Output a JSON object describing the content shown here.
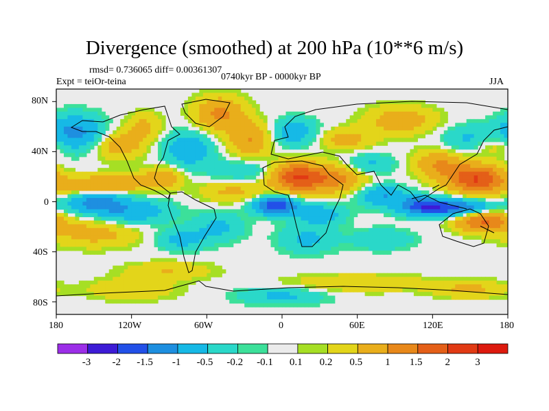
{
  "title": "Divergence (smoothed) at 200 hPa (10**6 m/s)",
  "stats": "rmsd= 0.736065 diff= 0.00361307",
  "experiment": "Expt = teiOr-teina",
  "period": "0740kyr BP - 0000kyr BP",
  "season": "JJA",
  "y_ticks": [
    "80N",
    "40N",
    "0",
    "40S",
    "80S"
  ],
  "x_ticks": [
    "180",
    "120W",
    "60W",
    "0",
    "60E",
    "120E",
    "180"
  ],
  "colorbar": {
    "labels": [
      "-3",
      "-2",
      "-1.5",
      "-1",
      "-0.5",
      "-0.2",
      "-0.1",
      "0.1",
      "0.2",
      "0.5",
      "1",
      "1.5",
      "2",
      "3"
    ],
    "colors": [
      "#9c2ee8",
      "#3d1bd6",
      "#2250e8",
      "#1e8fe0",
      "#16b9e6",
      "#2ad8c9",
      "#3ce09a",
      "#ebebeb",
      "#a6df24",
      "#e3d51a",
      "#e9ae1b",
      "#e8881a",
      "#e45f18",
      "#e13a14",
      "#dd1a0e"
    ]
  },
  "colors": {
    "neutral": "#ebebeb",
    "coast": "#000000"
  },
  "chart_data": {
    "type": "heatmap",
    "title": "Divergence (smoothed) at 200 hPa (10**6 m/s)",
    "variable": "Divergence (smoothed) at 200 hPa",
    "units": "10**6 m/s",
    "x_range": [
      -180,
      180
    ],
    "y_range": [
      -90,
      90
    ],
    "levels": [
      -3,
      -2,
      -1.5,
      -1,
      -0.5,
      -0.2,
      -0.1,
      0.1,
      0.2,
      0.5,
      1,
      1.5,
      2,
      3
    ],
    "features": [
      {
        "lon": -150,
        "lat": 0,
        "sigma_lon": 16,
        "sigma_lat": 6,
        "value": -1.2
      },
      {
        "lon": -120,
        "lat": -8,
        "sigma_lon": 22,
        "sigma_lat": 7,
        "value": -0.9
      },
      {
        "lon": -160,
        "lat": 12,
        "sigma_lon": 18,
        "sigma_lat": 6,
        "value": 0.6
      },
      {
        "lon": -125,
        "lat": 15,
        "sigma_lon": 22,
        "sigma_lat": 5,
        "value": 0.8
      },
      {
        "lon": -95,
        "lat": 20,
        "sigma_lon": 10,
        "sigma_lat": 6,
        "value": 0.8
      },
      {
        "lon": -150,
        "lat": -25,
        "sigma_lon": 25,
        "sigma_lat": 8,
        "value": 0.7
      },
      {
        "lon": -165,
        "lat": 55,
        "sigma_lon": 16,
        "sigma_lat": 10,
        "value": -1.2
      },
      {
        "lon": -130,
        "lat": 45,
        "sigma_lon": 14,
        "sigma_lat": 8,
        "value": 0.8
      },
      {
        "lon": -110,
        "lat": 60,
        "sigma_lon": 10,
        "sigma_lat": 8,
        "value": 0.6
      },
      {
        "lon": -75,
        "lat": 42,
        "sigma_lon": 14,
        "sigma_lat": 10,
        "value": -0.9
      },
      {
        "lon": -50,
        "lat": 70,
        "sigma_lon": 14,
        "sigma_lat": 10,
        "value": 1.1
      },
      {
        "lon": -25,
        "lat": 50,
        "sigma_lon": 12,
        "sigma_lat": 10,
        "value": 1.0
      },
      {
        "lon": -30,
        "lat": 25,
        "sigma_lon": 20,
        "sigma_lat": 6,
        "value": -0.5
      },
      {
        "lon": -40,
        "lat": 8,
        "sigma_lon": 18,
        "sigma_lat": 6,
        "value": 0.6
      },
      {
        "lon": -5,
        "lat": -3,
        "sigma_lon": 12,
        "sigma_lat": 5,
        "value": -2.0
      },
      {
        "lon": 10,
        "lat": 20,
        "sigma_lon": 14,
        "sigma_lat": 8,
        "value": 1.8
      },
      {
        "lon": 40,
        "lat": 18,
        "sigma_lon": 18,
        "sigma_lat": 8,
        "value": 1.2
      },
      {
        "lon": 30,
        "lat": -10,
        "sigma_lon": 14,
        "sigma_lat": 6,
        "value": -0.8
      },
      {
        "lon": 10,
        "lat": 55,
        "sigma_lon": 14,
        "sigma_lat": 8,
        "value": -0.8
      },
      {
        "lon": 50,
        "lat": 50,
        "sigma_lon": 16,
        "sigma_lat": 6,
        "value": 0.7
      },
      {
        "lon": 70,
        "lat": 30,
        "sigma_lon": 14,
        "sigma_lat": 6,
        "value": -0.6
      },
      {
        "lon": 80,
        "lat": 5,
        "sigma_lon": 14,
        "sigma_lat": 6,
        "value": -1.0
      },
      {
        "lon": 95,
        "lat": 65,
        "sigma_lon": 20,
        "sigma_lat": 8,
        "value": 0.8
      },
      {
        "lon": 125,
        "lat": 30,
        "sigma_lon": 14,
        "sigma_lat": 8,
        "value": 1.0
      },
      {
        "lon": 155,
        "lat": 18,
        "sigma_lon": 16,
        "sigma_lat": 8,
        "value": 2.0
      },
      {
        "lon": 135,
        "lat": -5,
        "sigma_lon": 22,
        "sigma_lat": 5,
        "value": -1.8
      },
      {
        "lon": 110,
        "lat": -3,
        "sigma_lon": 12,
        "sigma_lat": 5,
        "value": -1.0
      },
      {
        "lon": 160,
        "lat": -15,
        "sigma_lon": 16,
        "sigma_lat": 6,
        "value": 1.6
      },
      {
        "lon": 150,
        "lat": 50,
        "sigma_lon": 16,
        "sigma_lat": 8,
        "value": -0.6
      },
      {
        "lon": 170,
        "lat": 45,
        "sigma_lon": 12,
        "sigma_lat": 6,
        "value": 0.6
      },
      {
        "lon": -80,
        "lat": -30,
        "sigma_lon": 14,
        "sigma_lat": 6,
        "value": -0.7
      },
      {
        "lon": -50,
        "lat": -20,
        "sigma_lon": 14,
        "sigma_lat": 8,
        "value": -0.6
      },
      {
        "lon": 20,
        "lat": -30,
        "sigma_lon": 16,
        "sigma_lat": 8,
        "value": -0.6
      },
      {
        "lon": 80,
        "lat": -30,
        "sigma_lon": 18,
        "sigma_lat": 6,
        "value": -0.5
      },
      {
        "lon": -90,
        "lat": -55,
        "sigma_lon": 25,
        "sigma_lat": 5,
        "value": 0.5
      },
      {
        "lon": -120,
        "lat": -70,
        "sigma_lon": 25,
        "sigma_lat": 6,
        "value": 0.5
      },
      {
        "lon": 60,
        "lat": -65,
        "sigma_lon": 40,
        "sigma_lat": 5,
        "value": 0.5
      },
      {
        "lon": 150,
        "lat": -70,
        "sigma_lon": 20,
        "sigma_lat": 5,
        "value": 0.6
      },
      {
        "lon": 0,
        "lat": -75,
        "sigma_lon": 25,
        "sigma_lat": 5,
        "value": -0.6
      }
    ]
  }
}
